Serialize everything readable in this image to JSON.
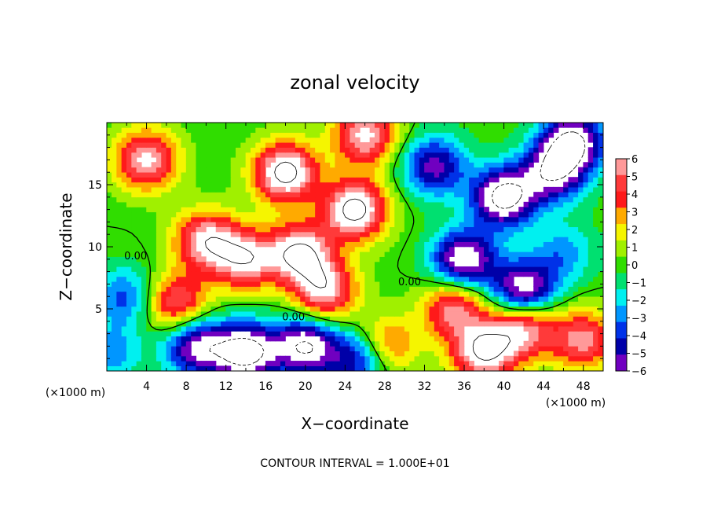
{
  "chart_data": {
    "type": "heatmap",
    "title": "zonal velocity",
    "xlabel": "X−coordinate",
    "ylabel": "Z−coordinate",
    "x_unit_left": "(×1000 m)",
    "x_unit_right": "(×1000 m)",
    "footer": "CONTOUR INTERVAL = 1.000E+01",
    "xlim": [
      0,
      50
    ],
    "ylim": [
      0,
      20
    ],
    "xticks": [
      4,
      8,
      12,
      16,
      20,
      24,
      28,
      32,
      36,
      40,
      44,
      48
    ],
    "xtick_labels": [
      "4",
      "8",
      "12",
      "16",
      "20",
      "24",
      "28",
      "32",
      "36",
      "40",
      "44",
      "48"
    ],
    "yticks": [
      5,
      10,
      15
    ],
    "ytick_labels": [
      "5",
      "10",
      "15"
    ],
    "colorbar": {
      "levels": [
        6,
        5,
        4,
        3,
        2,
        1,
        0,
        -1,
        -2,
        -3,
        -4,
        -5,
        -6
      ],
      "labels": [
        "6",
        "5",
        "4",
        "3",
        "2",
        "1",
        "0",
        "−1",
        "−2",
        "−3",
        "−4",
        "−5",
        "−6"
      ],
      "colors": [
        "#ff9999",
        "#ff3a3a",
        "#ff1a1a",
        "#ffaa00",
        "#f5f500",
        "#a0f000",
        "#30dd00",
        "#00e070",
        "#00f0f0",
        "#0096ff",
        "#0032e8",
        "#0000a8",
        "#7000c0"
      ]
    },
    "contour_labels": [
      {
        "text": "0.00",
        "x": 18.8,
        "y": 4.4
      },
      {
        "text": "0.00",
        "x": 30.5,
        "y": 7.2
      },
      {
        "text": "0.00",
        "x": 2.9,
        "y": 9.3
      }
    ],
    "cores": [
      {
        "x": 4.0,
        "y": 17.0,
        "value": 7
      },
      {
        "x": 10.0,
        "y": 10.5,
        "value": 7
      },
      {
        "x": 7.0,
        "y": 5.5,
        "value": 6
      },
      {
        "x": 14.0,
        "y": 9.0,
        "value": 7
      },
      {
        "x": 18.0,
        "y": 16.0,
        "value": 9
      },
      {
        "x": 19.5,
        "y": 9.5,
        "value": 8
      },
      {
        "x": 22.0,
        "y": 6.5,
        "value": 7
      },
      {
        "x": 25.0,
        "y": 13.0,
        "value": 9
      },
      {
        "x": 26.0,
        "y": 19.0,
        "value": 7
      },
      {
        "x": 28.0,
        "y": 2.0,
        "value": 5
      },
      {
        "x": 40.0,
        "y": 14.0,
        "value": -9
      },
      {
        "x": 36.0,
        "y": 9.0,
        "value": -8
      },
      {
        "x": 47.0,
        "y": 18.5,
        "value": -8
      },
      {
        "x": 45.0,
        "y": 16.0,
        "value": -7
      },
      {
        "x": 42.0,
        "y": 6.5,
        "value": -8
      },
      {
        "x": 35.0,
        "y": 5.0,
        "value": 6
      },
      {
        "x": 42.0,
        "y": 3.5,
        "value": 7
      },
      {
        "x": 48.0,
        "y": 2.5,
        "value": 6
      },
      {
        "x": 38.0,
        "y": 1.5,
        "value": 8
      },
      {
        "x": 14.0,
        "y": 1.5,
        "value": -9
      },
      {
        "x": 20.0,
        "y": 2.0,
        "value": -8
      },
      {
        "x": 9.0,
        "y": 2.0,
        "value": -7
      },
      {
        "x": 25.5,
        "y": 1.0,
        "value": -6
      },
      {
        "x": 2.0,
        "y": 6.0,
        "value": -4
      },
      {
        "x": 0.5,
        "y": 1.5,
        "value": -3
      },
      {
        "x": 33.0,
        "y": 16.5,
        "value": -6
      },
      {
        "x": 46.0,
        "y": 9.5,
        "value": -3
      }
    ]
  }
}
